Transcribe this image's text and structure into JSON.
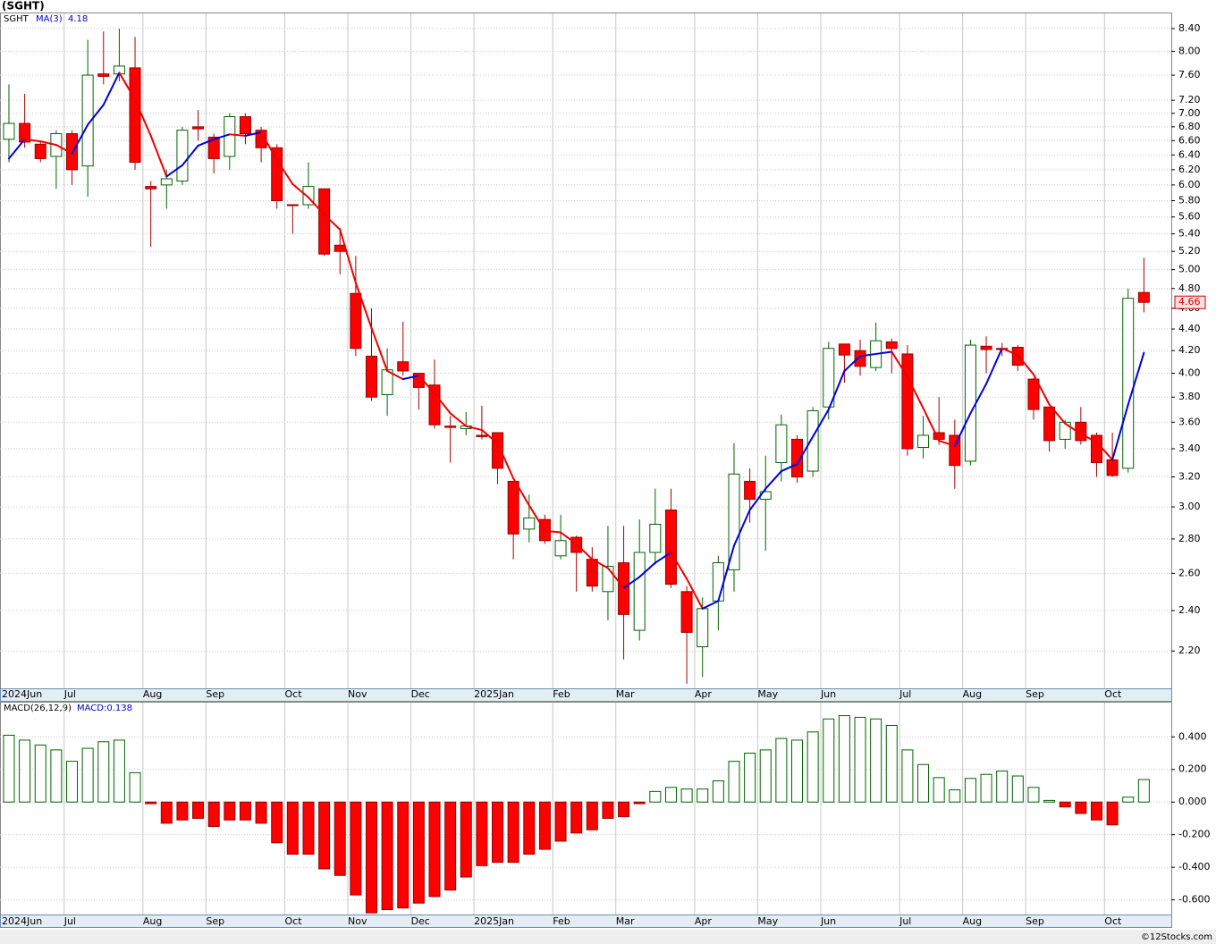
{
  "chart_data": [
    {
      "type": "candlestick",
      "title": "(SGHT)",
      "symbol": "SGHT",
      "log": true,
      "grid": true,
      "up_color": "#006400",
      "down_color": "#ff0000",
      "open": [
        6.62,
        6.85,
        6.55,
        6.38,
        6.7,
        6.25,
        7.62,
        7.62,
        7.72,
        5.98,
        6.0,
        6.05,
        6.8,
        6.65,
        6.38,
        6.95,
        6.75,
        6.5,
        5.75,
        5.75,
        5.95,
        5.27,
        4.75,
        4.15,
        3.82,
        4.1,
        4.0,
        3.9,
        3.57,
        3.55,
        3.5,
        3.52,
        3.17,
        2.86,
        2.92,
        2.7,
        2.81,
        2.68,
        2.5,
        2.66,
        2.3,
        2.72,
        2.98,
        2.5,
        2.22,
        2.45,
        2.62,
        3.17,
        3.05,
        3.3,
        3.47,
        3.24,
        3.72,
        4.26,
        4.2,
        4.05,
        4.28,
        4.17,
        3.41,
        3.52,
        3.5,
        3.31,
        4.24,
        4.22,
        4.23,
        3.95,
        3.72,
        3.47,
        3.6,
        3.5,
        3.32,
        3.26,
        4.76
      ],
      "high": [
        7.45,
        7.3,
        6.6,
        6.75,
        6.75,
        8.2,
        8.35,
        8.4,
        8.25,
        6.05,
        6.2,
        6.8,
        7.05,
        6.7,
        7.0,
        7.0,
        6.8,
        6.55,
        5.75,
        6.3,
        5.95,
        5.47,
        5.15,
        4.6,
        4.22,
        4.47,
        4.0,
        4.12,
        3.65,
        3.68,
        3.73,
        3.52,
        3.17,
        3.08,
        2.95,
        2.95,
        2.82,
        2.75,
        2.88,
        2.88,
        2.92,
        3.12,
        3.12,
        2.53,
        2.47,
        2.7,
        3.44,
        3.26,
        3.35,
        3.66,
        3.5,
        3.72,
        4.28,
        4.26,
        4.3,
        4.46,
        4.31,
        4.25,
        3.65,
        3.8,
        3.62,
        4.3,
        4.33,
        4.27,
        4.25,
        3.96,
        3.72,
        3.62,
        3.72,
        3.52,
        3.52,
        4.8,
        5.13
      ],
      "low": [
        6.3,
        6.5,
        6.3,
        5.95,
        6.0,
        5.85,
        7.45,
        7.5,
        6.2,
        5.25,
        5.7,
        6.0,
        6.6,
        6.15,
        6.2,
        6.55,
        6.3,
        5.7,
        5.4,
        5.7,
        5.15,
        4.95,
        4.15,
        3.77,
        3.65,
        3.98,
        3.7,
        3.55,
        3.3,
        3.5,
        3.47,
        3.15,
        2.68,
        2.78,
        2.77,
        2.68,
        2.5,
        2.5,
        2.35,
        2.16,
        2.25,
        2.65,
        2.52,
        2.05,
        2.08,
        2.3,
        2.5,
        2.9,
        2.73,
        3.17,
        3.16,
        3.2,
        3.62,
        3.92,
        3.98,
        4.02,
        4.0,
        3.35,
        3.33,
        3.43,
        3.12,
        3.28,
        4.0,
        4.15,
        4.02,
        3.62,
        3.38,
        3.4,
        3.43,
        3.2,
        3.2,
        3.23,
        4.56
      ],
      "close": [
        6.85,
        6.58,
        6.35,
        6.7,
        6.2,
        7.6,
        7.58,
        7.75,
        6.3,
        5.95,
        6.08,
        6.75,
        6.77,
        6.35,
        6.95,
        6.7,
        6.5,
        5.8,
        5.74,
        5.98,
        5.17,
        5.2,
        4.22,
        3.8,
        4.03,
        4.02,
        3.88,
        3.58,
        3.56,
        3.57,
        3.49,
        3.26,
        2.83,
        2.93,
        2.79,
        2.79,
        2.72,
        2.53,
        2.64,
        2.38,
        2.72,
        2.89,
        2.54,
        2.29,
        2.41,
        2.66,
        3.22,
        3.05,
        3.1,
        3.58,
        3.2,
        3.69,
        4.22,
        4.16,
        4.06,
        4.29,
        4.22,
        3.4,
        3.5,
        3.47,
        3.28,
        4.25,
        4.21,
        4.21,
        4.07,
        3.7,
        3.46,
        3.6,
        3.46,
        3.3,
        3.21,
        4.7,
        4.66
      ],
      "ma": {
        "name": "MA(3)",
        "rise_color": "#0000dd",
        "fall_color": "#ee0000",
        "values": [
          6.35,
          6.62,
          6.59,
          6.54,
          6.42,
          6.83,
          7.13,
          7.64,
          7.21,
          6.67,
          6.11,
          6.26,
          6.53,
          6.62,
          6.69,
          6.67,
          6.72,
          6.33,
          6.01,
          5.84,
          5.63,
          5.45,
          4.86,
          4.41,
          4.02,
          3.95,
          3.98,
          3.83,
          3.67,
          3.57,
          3.54,
          3.44,
          3.19,
          3.01,
          2.85,
          2.84,
          2.77,
          2.68,
          2.63,
          2.52,
          2.58,
          2.66,
          2.72,
          2.57,
          2.41,
          2.45,
          2.76,
          2.98,
          3.12,
          3.24,
          3.29,
          3.49,
          3.7,
          4.02,
          4.15,
          4.17,
          4.19,
          3.97,
          3.71,
          3.46,
          3.42,
          3.67,
          3.91,
          4.22,
          4.16,
          3.99,
          3.74,
          3.59,
          3.51,
          3.45,
          3.32,
          3.74,
          4.18
        ]
      },
      "ylim": [
        2.03,
        8.68
      ],
      "yticks": [
        {
          "value": 2.2,
          "label": "2.20"
        },
        {
          "value": 2.4,
          "label": "2.40"
        },
        {
          "value": 2.6,
          "label": "2.60"
        },
        {
          "value": 2.8,
          "label": "2.80"
        },
        {
          "value": 3.0,
          "label": "3.00"
        },
        {
          "value": 3.2,
          "label": "3.20"
        },
        {
          "value": 3.4,
          "label": "3.40"
        },
        {
          "value": 3.6,
          "label": "3.60"
        },
        {
          "value": 3.8,
          "label": "3.80"
        },
        {
          "value": 4.0,
          "label": "4.00"
        },
        {
          "value": 4.2,
          "label": "4.20"
        },
        {
          "value": 4.4,
          "label": "4.40"
        },
        {
          "value": 4.6,
          "label": "4.60"
        },
        {
          "value": 4.8,
          "label": "4.80"
        },
        {
          "value": 5.0,
          "label": "5.00"
        },
        {
          "value": 5.2,
          "label": "5.20"
        },
        {
          "value": 5.4,
          "label": "5.40"
        },
        {
          "value": 5.6,
          "label": "5.60"
        },
        {
          "value": 5.8,
          "label": "5.80"
        },
        {
          "value": 6.0,
          "label": "6.00"
        },
        {
          "value": 6.2,
          "label": "6.20"
        },
        {
          "value": 6.4,
          "label": "6.40"
        },
        {
          "value": 6.6,
          "label": "6.60"
        },
        {
          "value": 6.8,
          "label": "6.80"
        },
        {
          "value": 7.0,
          "label": "7.00"
        },
        {
          "value": 7.2,
          "label": "7.20"
        },
        {
          "value": 7.6,
          "label": "7.60"
        },
        {
          "value": 8.0,
          "label": "8.00"
        },
        {
          "value": 8.4,
          "label": "8.40"
        }
      ],
      "month_labels": [
        {
          "label": "2024Jun",
          "index": 0
        },
        {
          "label": "Jul",
          "index": 4
        },
        {
          "label": "Aug",
          "index": 9
        },
        {
          "label": "Sep",
          "index": 13
        },
        {
          "label": "Oct",
          "index": 18
        },
        {
          "label": "Nov",
          "index": 22
        },
        {
          "label": "Dec",
          "index": 26
        },
        {
          "label": "2025Jan",
          "index": 30
        },
        {
          "label": "Feb",
          "index": 35
        },
        {
          "label": "Mar",
          "index": 39
        },
        {
          "label": "Apr",
          "index": 44
        },
        {
          "label": "May",
          "index": 48
        },
        {
          "label": "Jun",
          "index": 52
        },
        {
          "label": "Jul",
          "index": 57
        },
        {
          "label": "Aug",
          "index": 61
        },
        {
          "label": "Sep",
          "index": 65
        },
        {
          "label": "Oct",
          "index": 70
        }
      ]
    },
    {
      "type": "bar",
      "title": "MACD(26,12,9)",
      "value_label": "MACD:0.138",
      "grid": true,
      "up_color": "#006400",
      "down_color": "#ff0000",
      "values": [
        0.41,
        0.38,
        0.35,
        0.32,
        0.25,
        0.33,
        0.37,
        0.38,
        0.18,
        -0.01,
        -0.13,
        -0.11,
        -0.1,
        -0.15,
        -0.11,
        -0.11,
        -0.13,
        -0.25,
        -0.32,
        -0.32,
        -0.41,
        -0.45,
        -0.57,
        -0.68,
        -0.66,
        -0.65,
        -0.62,
        -0.58,
        -0.54,
        -0.46,
        -0.39,
        -0.37,
        -0.37,
        -0.32,
        -0.29,
        -0.24,
        -0.19,
        -0.17,
        -0.1,
        -0.09,
        -0.01,
        0.065,
        0.09,
        0.08,
        0.08,
        0.13,
        0.25,
        0.3,
        0.32,
        0.39,
        0.38,
        0.43,
        0.51,
        0.53,
        0.52,
        0.51,
        0.47,
        0.32,
        0.23,
        0.15,
        0.075,
        0.145,
        0.17,
        0.19,
        0.16,
        0.09,
        0.01,
        -0.03,
        -0.07,
        -0.11,
        -0.14,
        0.03,
        0.138
      ],
      "ylim": [
        -0.69,
        0.61
      ],
      "yticks": [
        {
          "value": 0.4,
          "label": "0.400"
        },
        {
          "value": 0.2,
          "label": "0.200"
        },
        {
          "value": 0,
          "label": "0.000"
        },
        {
          "value": -0.2,
          "label": "-0.200"
        },
        {
          "value": -0.4,
          "label": "-0.400"
        },
        {
          "value": -0.6,
          "label": "-0.600"
        }
      ]
    }
  ],
  "footer": "©12Stocks.com"
}
